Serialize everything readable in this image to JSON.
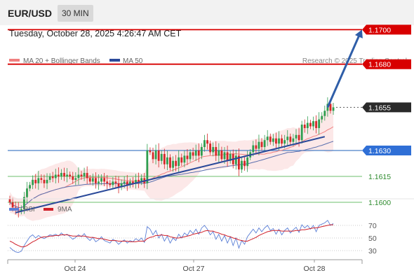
{
  "header": {
    "symbol": "EUR/USD",
    "timeframe": "30 MIN",
    "datetime": "Tuesday, October 28, 2025 4:26:47 AM CET"
  },
  "legend": {
    "ma20_label": "MA 20 + Bollinger Bands",
    "ma50_label": "MA 50",
    "credit": "Research © 2025 Trading Central",
    "rsi_label": "RSI",
    "ma9_label": "9MA"
  },
  "colors": {
    "bull": "#2e9e4f",
    "bear": "#d62728",
    "ma20": "#f08080",
    "ma50": "#5a6fae",
    "trend": "#2b4a9a",
    "resistance": "#d80000",
    "support": "#4a80c8",
    "target": "#6cbf6c",
    "arrow": "#2f5ea8",
    "rsi": "#5b7fd6",
    "ma9": "#d0202a"
  },
  "chart_data": [
    {
      "type": "candlestick",
      "x_ticks": [
        "Oct 24",
        "Oct 27",
        "Oct 28"
      ],
      "ylim": [
        1.1585,
        1.1705
      ],
      "levels": [
        {
          "name": "resistance-2",
          "value": 1.17,
          "label": "1.1700",
          "style": "resistance"
        },
        {
          "name": "resistance-1",
          "value": 1.168,
          "label": "1.1680",
          "style": "resistance"
        },
        {
          "name": "last-price",
          "value": 1.1655,
          "label": "1.1655",
          "style": "last"
        },
        {
          "name": "pivot",
          "value": 1.163,
          "label": "1.1630",
          "style": "pivot"
        },
        {
          "name": "support-1",
          "value": 1.1615,
          "label": "1.1615",
          "style": "target"
        },
        {
          "name": "support-2",
          "value": 1.16,
          "label": "1.1600",
          "style": "target"
        }
      ],
      "trendline": [
        {
          "x": 2,
          "y": 1.1594
        },
        {
          "x": 110,
          "y": 1.1638
        }
      ],
      "forecast_arrow": [
        {
          "x": 111,
          "y": 1.1655
        },
        {
          "x": 123,
          "y": 1.17
        }
      ],
      "closes": [
        1.16,
        1.1597,
        1.1596,
        1.1595,
        1.1596,
        1.1603,
        1.1608,
        1.161,
        1.1613,
        1.1611,
        1.1614,
        1.1613,
        1.1611,
        1.1613,
        1.1615,
        1.1614,
        1.1616,
        1.1615,
        1.1617,
        1.1615,
        1.1616,
        1.1615,
        1.1613,
        1.1614,
        1.1616,
        1.1615,
        1.1617,
        1.1614,
        1.1612,
        1.1614,
        1.1611,
        1.1612,
        1.1614,
        1.1612,
        1.1611,
        1.161,
        1.1612,
        1.1611,
        1.1609,
        1.1611,
        1.1612,
        1.161,
        1.1612,
        1.1611,
        1.1613,
        1.1612,
        1.1614,
        1.1611,
        1.163,
        1.1629,
        1.1625,
        1.163,
        1.1624,
        1.1628,
        1.1622,
        1.1626,
        1.162,
        1.1624,
        1.1621,
        1.1626,
        1.1623,
        1.1627,
        1.1625,
        1.1629,
        1.1627,
        1.163,
        1.1627,
        1.1632,
        1.1636,
        1.1634,
        1.1629,
        1.1632,
        1.1627,
        1.163,
        1.1625,
        1.1629,
        1.1624,
        1.1628,
        1.1622,
        1.1627,
        1.1619,
        1.1624,
        1.1621,
        1.1626,
        1.1629,
        1.1633,
        1.1631,
        1.1635,
        1.1632,
        1.1636,
        1.1638,
        1.1635,
        1.1637,
        1.1634,
        1.1637,
        1.1634,
        1.1636,
        1.1638,
        1.1635,
        1.1637,
        1.1639,
        1.1636,
        1.1645,
        1.1643,
        1.1646,
        1.1644,
        1.1647,
        1.1643,
        1.1648,
        1.165,
        1.1653,
        1.1657,
        1.1653,
        1.1655
      ]
    },
    {
      "type": "line",
      "name": "RSI",
      "ylabels": [
        "70",
        "50",
        "30"
      ],
      "ylim": [
        20,
        80
      ],
      "rsi": [
        35,
        31,
        28,
        27,
        29,
        38,
        45,
        52,
        55,
        50,
        54,
        51,
        49,
        52,
        55,
        54,
        56,
        53,
        58,
        54,
        56,
        52,
        48,
        51,
        55,
        52,
        57,
        50,
        46,
        51,
        44,
        47,
        52,
        46,
        44,
        42,
        48,
        45,
        40,
        44,
        47,
        42,
        46,
        44,
        49,
        46,
        50,
        43,
        68,
        64,
        55,
        62,
        50,
        56,
        45,
        53,
        42,
        50,
        46,
        56,
        50,
        58,
        54,
        62,
        57,
        64,
        56,
        66,
        70,
        64,
        55,
        60,
        48,
        56,
        45,
        54,
        42,
        52,
        38,
        50,
        34,
        46,
        40,
        52,
        58,
        64,
        58,
        66,
        60,
        66,
        70,
        62,
        65,
        56,
        64,
        55,
        62,
        66,
        58,
        63,
        67,
        59,
        71,
        66,
        70,
        64,
        70,
        60,
        70,
        72,
        74,
        78,
        70,
        73
      ],
      "ma9": [
        45,
        43,
        40,
        38,
        36,
        36,
        38,
        41,
        44,
        46,
        49,
        51,
        52,
        52,
        53,
        53,
        54,
        54,
        55,
        55,
        55,
        54,
        53,
        53,
        53,
        53,
        53,
        52,
        51,
        51,
        50,
        49,
        49,
        48,
        47,
        46,
        46,
        46,
        45,
        45,
        45,
        45,
        44,
        44,
        44,
        45,
        45,
        45,
        49,
        51,
        52,
        54,
        54,
        55,
        54,
        54,
        52,
        51,
        50,
        50,
        51,
        52,
        53,
        54,
        56,
        57,
        58,
        59,
        61,
        62,
        61,
        61,
        59,
        58,
        56,
        55,
        53,
        52,
        50,
        49,
        47,
        46,
        45,
        45,
        47,
        49,
        51,
        54,
        56,
        58,
        60,
        61,
        62,
        62,
        62,
        61,
        61,
        61,
        61,
        61,
        62,
        62,
        63,
        63,
        64,
        65,
        66,
        66,
        67,
        68,
        69,
        70,
        71,
        71
      ]
    }
  ]
}
